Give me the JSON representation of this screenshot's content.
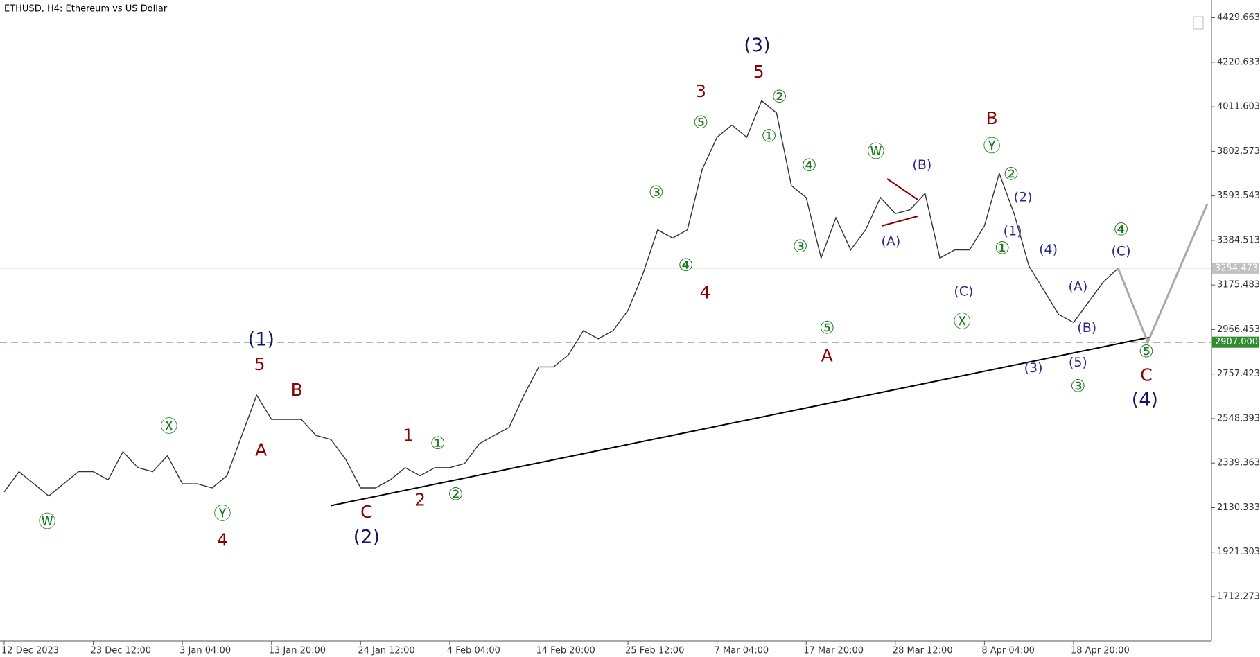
{
  "chart_data": {
    "type": "line",
    "title": "ETHUSD, H4:  Ethereum vs US Dollar",
    "categories": [
      "12 Dec 2023",
      null,
      null,
      null,
      null,
      null,
      "23 Dec 12:00",
      null,
      null,
      null,
      null,
      null,
      "3 Jan 04:00",
      null,
      null,
      null,
      null,
      null,
      "13 Jan 20:00",
      null,
      null,
      null,
      null,
      null,
      "24 Jan 12:00",
      null,
      null,
      null,
      null,
      null,
      "4 Feb 04:00",
      null,
      null,
      null,
      null,
      null,
      "14 Feb 20:00",
      null,
      null,
      null,
      null,
      null,
      "25 Feb 12:00",
      null,
      null,
      null,
      null,
      null,
      "7 Mar 04:00",
      null,
      null,
      null,
      null,
      null,
      "17 Mar 20:00",
      null,
      null,
      null,
      null,
      null,
      "28 Mar 12:00",
      null,
      null,
      null,
      null,
      null,
      "8 Apr 04:00",
      null,
      null,
      null,
      null,
      null,
      "18 Apr 20:00",
      null,
      null,
      null,
      null,
      null,
      null,
      null,
      null,
      null
    ],
    "series": [
      {
        "color": "#333333",
        "values": [
          2204,
          2299,
          2242,
          2185,
          2242,
          2299,
          2299,
          2261,
          2393,
          2318,
          2299,
          2374,
          2242,
          2242,
          2223,
          2280,
          2469,
          2658,
          2545,
          2545,
          2545,
          2469,
          2450,
          2356,
          2223,
          2223,
          2261,
          2318,
          2280,
          2318,
          2318,
          2337,
          2431,
          2469,
          2507,
          2658,
          2791,
          2791,
          2848,
          2961,
          2923,
          2961,
          3056,
          3226,
          3434,
          3396,
          3434,
          3718,
          3869,
          3926,
          3869,
          4040,
          3983,
          3642,
          3586,
          3302,
          3491,
          3340,
          3434,
          3586,
          3510,
          3529,
          3605,
          3302,
          3340,
          3340,
          3453,
          3699,
          3510,
          3264,
          3151,
          3037,
          2999,
          3094,
          3189,
          3254,
          null,
          null,
          null,
          null,
          null,
          null
        ]
      },
      {
        "color": "#a9a9a9",
        "values": [
          null,
          null,
          null,
          null,
          null,
          null,
          null,
          null,
          null,
          null,
          null,
          null,
          null,
          null,
          null,
          null,
          null,
          null,
          null,
          null,
          null,
          null,
          null,
          null,
          null,
          null,
          null,
          null,
          null,
          null,
          null,
          null,
          null,
          null,
          null,
          null,
          null,
          null,
          null,
          null,
          null,
          null,
          null,
          null,
          null,
          null,
          null,
          null,
          null,
          null,
          null,
          null,
          null,
          null,
          null,
          null,
          null,
          null,
          null,
          null,
          null,
          null,
          null,
          null,
          null,
          null,
          null,
          null,
          null,
          null,
          null,
          null,
          null,
          null,
          null,
          3254,
          null,
          2907,
          null,
          null,
          null,
          3555
        ]
      }
    ],
    "ylim": [
      1504,
      4513
    ],
    "yticks": [
      4429.663,
      4220.633,
      4011.603,
      3802.573,
      3593.543,
      3384.513,
      3175.483,
      2966.453,
      2757.423,
      2548.393,
      2339.363,
      2130.333,
      1921.303,
      1712.273
    ],
    "hlines": [
      {
        "value": 3254.473,
        "label": "3254.473",
        "color": "#c0c0c0",
        "style": "solid"
      },
      {
        "value": 2907,
        "label": "2907.000",
        "color": "#2e8b2e",
        "style": "dashed"
      }
    ],
    "trendline": {
      "start": [
        22,
        2140
      ],
      "end": [
        77.2,
        2931
      ],
      "color": "#000000"
    },
    "annotations": [
      {
        "text": "(3)",
        "x": 50.7,
        "y": 4297,
        "color": "#141464"
      },
      {
        "text": "5",
        "x": 50.8,
        "y": 4172,
        "color": "#8b0000"
      },
      {
        "text": "3",
        "x": 46.9,
        "y": 4081,
        "color": "#8b0000"
      },
      {
        "text": "⑤",
        "x": 46.9,
        "y": 3934,
        "color": "#1a7a1a"
      },
      {
        "text": "②",
        "x": 52.2,
        "y": 4055,
        "color": "#1a7a1a"
      },
      {
        "text": "①",
        "x": 51.5,
        "y": 3870,
        "color": "#1a7a1a"
      },
      {
        "text": "④",
        "x": 54.2,
        "y": 3733,
        "color": "#1a7a1a"
      },
      {
        "text": "③",
        "x": 43.9,
        "y": 3605,
        "color": "#1a7a1a"
      },
      {
        "text": "④",
        "x": 45.9,
        "y": 3264,
        "color": "#1a7a1a"
      },
      {
        "text": "4",
        "x": 47.2,
        "y": 3136,
        "color": "#8b0000"
      },
      {
        "text": "③",
        "x": 53.6,
        "y": 3351,
        "color": "#1a7a1a"
      },
      {
        "text": "⑤",
        "x": 55.4,
        "y": 2969,
        "color": "#1a7a1a"
      },
      {
        "text": "A",
        "x": 55.4,
        "y": 2840,
        "color": "#8b0000"
      },
      {
        "text": "Ⓦ",
        "x": 58.7,
        "y": 3798,
        "color": "#1a7a1a"
      },
      {
        "text": "(B)",
        "x": 61.8,
        "y": 3737,
        "color": "#2a2a8a"
      },
      {
        "text": "(A)",
        "x": 59.7,
        "y": 3378,
        "color": "#2a2a8a"
      },
      {
        "text": "(C)",
        "x": 64.6,
        "y": 3143,
        "color": "#2a2a8a"
      },
      {
        "text": "Ⓧ",
        "x": 64.5,
        "y": 2999,
        "color": "#1a7a1a"
      },
      {
        "text": "B",
        "x": 66.5,
        "y": 3953,
        "color": "#8b0000"
      },
      {
        "text": "Ⓨ",
        "x": 66.5,
        "y": 3824,
        "color": "#1a7a1a"
      },
      {
        "text": "②",
        "x": 67.8,
        "y": 3692,
        "color": "#1a7a1a"
      },
      {
        "text": "(2)",
        "x": 68.6,
        "y": 3586,
        "color": "#2a2a8a"
      },
      {
        "text": "(1)",
        "x": 67.9,
        "y": 3427,
        "color": "#2a2a8a"
      },
      {
        "text": "①",
        "x": 67.2,
        "y": 3344,
        "color": "#1a7a1a"
      },
      {
        "text": "(4)",
        "x": 70.3,
        "y": 3340,
        "color": "#2a2a8a"
      },
      {
        "text": "(A)",
        "x": 72.3,
        "y": 3166,
        "color": "#2a2a8a"
      },
      {
        "text": "(B)",
        "x": 72.9,
        "y": 2973,
        "color": "#2a2a8a"
      },
      {
        "text": "(5)",
        "x": 72.3,
        "y": 2810,
        "color": "#2a2a8a"
      },
      {
        "text": "(3)",
        "x": 69.3,
        "y": 2784,
        "color": "#2a2a8a"
      },
      {
        "text": "③",
        "x": 72.3,
        "y": 2696,
        "color": "#1a7a1a"
      },
      {
        "text": "④",
        "x": 75.2,
        "y": 3431,
        "color": "#1a7a1a"
      },
      {
        "text": "(C)",
        "x": 75.2,
        "y": 3332,
        "color": "#2a2a8a"
      },
      {
        "text": "⑤",
        "x": 76.9,
        "y": 2859,
        "color": "#1a7a1a"
      },
      {
        "text": "C",
        "x": 76.9,
        "y": 2749,
        "color": "#8b0000"
      },
      {
        "text": "(4)",
        "x": 76.8,
        "y": 2632,
        "color": "#141464"
      },
      {
        "text": "(1)",
        "x": 17.3,
        "y": 2916,
        "color": "#141464"
      },
      {
        "text": "5",
        "x": 17.2,
        "y": 2799,
        "color": "#8b0000"
      },
      {
        "text": "B",
        "x": 19.7,
        "y": 2678,
        "color": "#8b0000"
      },
      {
        "text": "A",
        "x": 17.3,
        "y": 2397,
        "color": "#8b0000"
      },
      {
        "text": "Ⓧ",
        "x": 11.1,
        "y": 2507,
        "color": "#1a7a1a"
      },
      {
        "text": "Ⓨ",
        "x": 14.7,
        "y": 2098,
        "color": "#1a7a1a"
      },
      {
        "text": "Ⓦ",
        "x": 2.9,
        "y": 2061,
        "color": "#1a7a1a"
      },
      {
        "text": "4",
        "x": 14.7,
        "y": 1974,
        "color": "#8b0000"
      },
      {
        "text": "1",
        "x": 27.2,
        "y": 2466,
        "color": "#8b0000"
      },
      {
        "text": "①",
        "x": 29.2,
        "y": 2428,
        "color": "#1a7a1a"
      },
      {
        "text": "2",
        "x": 28.0,
        "y": 2163,
        "color": "#8b0000"
      },
      {
        "text": "②",
        "x": 30.4,
        "y": 2189,
        "color": "#1a7a1a"
      },
      {
        "text": "C",
        "x": 24.4,
        "y": 2106,
        "color": "#8b0000"
      },
      {
        "text": "(2)",
        "x": 24.4,
        "y": 1989,
        "color": "#141464"
      }
    ]
  }
}
